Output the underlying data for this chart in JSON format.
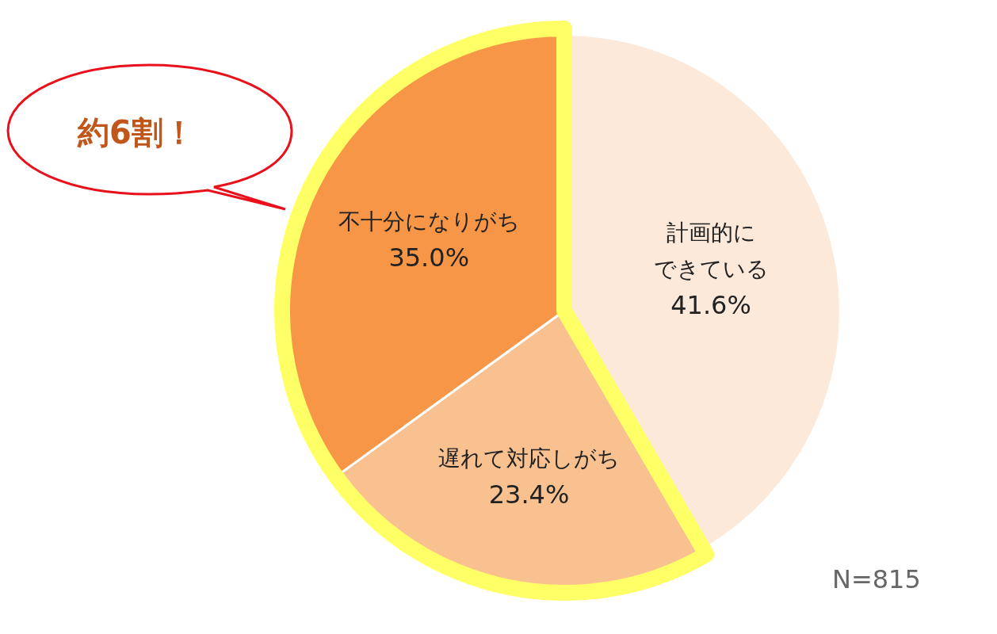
{
  "chart_data": {
    "type": "pie",
    "categories": [
      "計画的にできている",
      "遅れて対応しがち",
      "不十分になりがち"
    ],
    "values": [
      41.6,
      23.4,
      35.0
    ],
    "colors": [
      "#fde9d9",
      "#f9c090",
      "#f79646"
    ],
    "value_labels": [
      "41.6%",
      "23.4%",
      "35.0%"
    ],
    "annotations": [
      "約6割！",
      "N=815"
    ],
    "legend": false
  }
}
